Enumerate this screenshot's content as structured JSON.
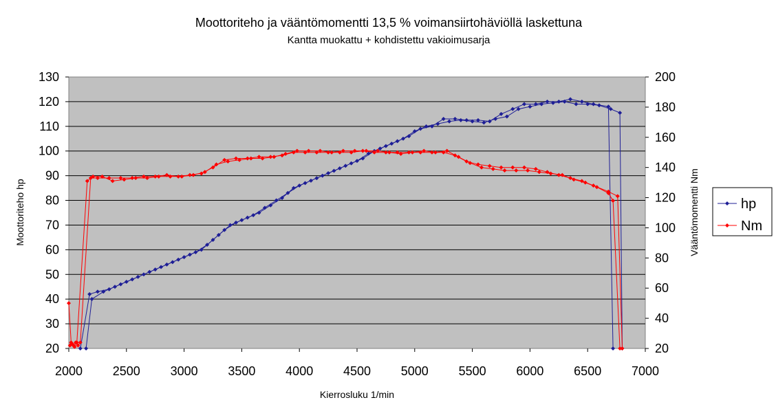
{
  "chart_data": {
    "type": "line",
    "title": "Moottoriteho ja vääntömomentti 13,5 % voimansiirtohäviöllä laskettuna",
    "subtitle": "Kantta muokattu + kohdistettu vakioimusarja",
    "xlabel": "Kierrosluku 1/min",
    "ylabel_left": "Moottoriteho hp",
    "ylabel_right": "Vääntömomentti Nm",
    "xlim": [
      2000,
      7000
    ],
    "x_ticks": [
      "2000",
      "2500",
      "3000",
      "3500",
      "4000",
      "4500",
      "5000",
      "5500",
      "6000",
      "6500",
      "7000"
    ],
    "ylim_left": [
      20,
      130
    ],
    "y_ticks_left": [
      "20",
      "30",
      "40",
      "50",
      "60",
      "70",
      "80",
      "90",
      "100",
      "110",
      "120",
      "130"
    ],
    "ylim_right": [
      20,
      200
    ],
    "y_ticks_right": [
      "20",
      "40",
      "60",
      "80",
      "100",
      "120",
      "140",
      "160",
      "180",
      "200"
    ],
    "grid": true,
    "legend_position": "right",
    "plot_background": "#c0c0c0",
    "series": [
      {
        "name": "hp",
        "axis": "left",
        "color": "#1e1e96",
        "marker": "diamond",
        "runs": [
          [
            [
              2150,
              20
            ],
            [
              2200,
              40
            ],
            [
              2300,
              43
            ],
            [
              2400,
              45
            ],
            [
              2500,
              47
            ],
            [
              2600,
              49
            ],
            [
              2700,
              51
            ],
            [
              2800,
              53
            ],
            [
              2900,
              55
            ],
            [
              3000,
              57
            ],
            [
              3100,
              59
            ],
            [
              3200,
              62
            ],
            [
              3300,
              66
            ],
            [
              3400,
              70
            ],
            [
              3500,
              72
            ],
            [
              3600,
              74
            ],
            [
              3700,
              77
            ],
            [
              3800,
              80
            ],
            [
              3900,
              83
            ],
            [
              4000,
              86
            ],
            [
              4100,
              88
            ],
            [
              4200,
              90
            ],
            [
              4300,
              92
            ],
            [
              4400,
              94
            ],
            [
              4500,
              96
            ],
            [
              4600,
              99
            ],
            [
              4700,
              101
            ],
            [
              4800,
              103
            ],
            [
              4900,
              105
            ],
            [
              5000,
              108
            ],
            [
              5100,
              110
            ],
            [
              5200,
              111
            ],
            [
              5300,
              112
            ],
            [
              5400,
              112.5
            ],
            [
              5500,
              112
            ],
            [
              5600,
              111.5
            ],
            [
              5700,
              113
            ],
            [
              5800,
              114
            ],
            [
              5900,
              117
            ],
            [
              6000,
              118
            ],
            [
              6100,
              119
            ],
            [
              6200,
              119.5
            ],
            [
              6300,
              120
            ],
            [
              6400,
              119
            ],
            [
              6500,
              119
            ],
            [
              6600,
              118.5
            ],
            [
              6700,
              117
            ],
            [
              6780,
              115.5
            ],
            [
              6800,
              20
            ]
          ],
          [
            [
              2100,
              20
            ],
            [
              2180,
              42
            ],
            [
              2250,
              43
            ],
            [
              2350,
              44
            ],
            [
              2450,
              46
            ],
            [
              2550,
              48
            ],
            [
              2650,
              50
            ],
            [
              2750,
              52
            ],
            [
              2850,
              54
            ],
            [
              2950,
              56
            ],
            [
              3050,
              58
            ],
            [
              3150,
              60
            ],
            [
              3250,
              64
            ],
            [
              3350,
              68
            ],
            [
              3450,
              71
            ],
            [
              3550,
              73
            ],
            [
              3650,
              75
            ],
            [
              3750,
              78
            ],
            [
              3850,
              81
            ],
            [
              3950,
              85
            ],
            [
              4050,
              87
            ],
            [
              4150,
              89
            ],
            [
              4250,
              91
            ],
            [
              4350,
              93
            ],
            [
              4450,
              95
            ],
            [
              4550,
              97
            ],
            [
              4650,
              100
            ],
            [
              4750,
              102
            ],
            [
              4850,
              104
            ],
            [
              4950,
              106
            ],
            [
              5050,
              109
            ],
            [
              5150,
              110
            ],
            [
              5250,
              113
            ],
            [
              5350,
              113
            ],
            [
              5450,
              112.5
            ],
            [
              5550,
              112.5
            ],
            [
              5650,
              112
            ],
            [
              5750,
              115
            ],
            [
              5850,
              117
            ],
            [
              5950,
              119
            ],
            [
              6050,
              119
            ],
            [
              6150,
              120
            ],
            [
              6250,
              120
            ],
            [
              6350,
              121
            ],
            [
              6450,
              120
            ],
            [
              6550,
              119
            ],
            [
              6680,
              118
            ],
            [
              6720,
              20
            ]
          ]
        ]
      },
      {
        "name": "Nm",
        "axis": "right",
        "color": "#ff0000",
        "marker": "diamond",
        "runs": [
          [
            [
              2000,
              50
            ],
            [
              2020,
              24
            ],
            [
              2040,
              22
            ],
            [
              2060,
              24
            ],
            [
              2080,
              22
            ],
            [
              2100,
              24
            ],
            [
              2190,
              133
            ],
            [
              2250,
              133
            ],
            [
              2350,
              133
            ],
            [
              2450,
              133
            ],
            [
              2550,
              133
            ],
            [
              2650,
              134
            ],
            [
              2750,
              134
            ],
            [
              2850,
              135
            ],
            [
              2950,
              134
            ],
            [
              3050,
              135
            ],
            [
              3150,
              136
            ],
            [
              3250,
              140
            ],
            [
              3350,
              145
            ],
            [
              3450,
              146
            ],
            [
              3550,
              146
            ],
            [
              3650,
              147
            ],
            [
              3750,
              147
            ],
            [
              3850,
              148
            ],
            [
              3950,
              150
            ],
            [
              4050,
              150
            ],
            [
              4150,
              150
            ],
            [
              4250,
              150
            ],
            [
              4350,
              150
            ],
            [
              4450,
              150
            ],
            [
              4550,
              151
            ],
            [
              4650,
              150
            ],
            [
              4750,
              150
            ],
            [
              4850,
              150
            ],
            [
              4950,
              150
            ],
            [
              5050,
              150
            ],
            [
              5150,
              150
            ],
            [
              5250,
              150
            ],
            [
              5350,
              148
            ],
            [
              5450,
              144
            ],
            [
              5550,
              142
            ],
            [
              5650,
              141
            ],
            [
              5750,
              140
            ],
            [
              5850,
              140
            ],
            [
              5950,
              140
            ],
            [
              6050,
              139
            ],
            [
              6150,
              137
            ],
            [
              6250,
              135
            ],
            [
              6350,
              133
            ],
            [
              6450,
              131
            ],
            [
              6550,
              128
            ],
            [
              6680,
              124
            ],
            [
              6760,
              121
            ],
            [
              6800,
              20
            ]
          ],
          [
            [
              2010,
              22
            ],
            [
              2030,
              23
            ],
            [
              2050,
              21
            ],
            [
              2070,
              24
            ],
            [
              2160,
              131
            ],
            [
              2210,
              134
            ],
            [
              2290,
              134
            ],
            [
              2380,
              131
            ],
            [
              2480,
              132
            ],
            [
              2580,
              133
            ],
            [
              2680,
              133
            ],
            [
              2780,
              134
            ],
            [
              2880,
              134
            ],
            [
              2980,
              134
            ],
            [
              3080,
              135
            ],
            [
              3180,
              137
            ],
            [
              3280,
              142
            ],
            [
              3380,
              144
            ],
            [
              3480,
              145
            ],
            [
              3580,
              146
            ],
            [
              3680,
              146
            ],
            [
              3780,
              147
            ],
            [
              3880,
              149
            ],
            [
              3980,
              151
            ],
            [
              4080,
              151
            ],
            [
              4180,
              151
            ],
            [
              4280,
              150
            ],
            [
              4380,
              151
            ],
            [
              4480,
              151
            ],
            [
              4580,
              151
            ],
            [
              4680,
              151
            ],
            [
              4780,
              150
            ],
            [
              4880,
              149
            ],
            [
              4980,
              150
            ],
            [
              5080,
              151
            ],
            [
              5180,
              150
            ],
            [
              5280,
              151
            ],
            [
              5380,
              147
            ],
            [
              5480,
              143
            ],
            [
              5580,
              140
            ],
            [
              5680,
              139
            ],
            [
              5780,
              138
            ],
            [
              5880,
              138
            ],
            [
              5980,
              138
            ],
            [
              6080,
              137
            ],
            [
              6180,
              136
            ],
            [
              6280,
              135
            ],
            [
              6380,
              132
            ],
            [
              6480,
              130
            ],
            [
              6580,
              127
            ],
            [
              6680,
              123
            ],
            [
              6720,
              118
            ],
            [
              6780,
              20
            ]
          ]
        ]
      }
    ]
  }
}
